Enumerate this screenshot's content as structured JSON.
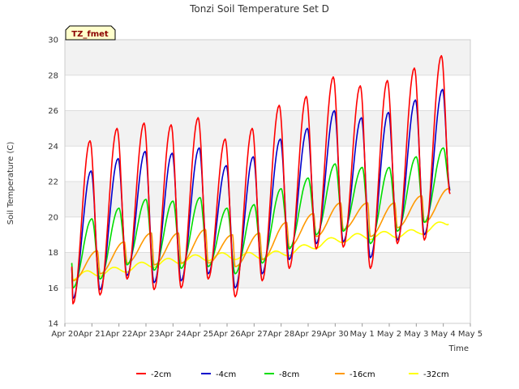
{
  "chart_data": {
    "type": "line",
    "title": "Tonzi Soil Temperature Set D",
    "xlabel": "Time",
    "ylabel": "Soil Temperature (C)",
    "ylim": [
      14,
      30
    ],
    "yticks": [
      14,
      16,
      18,
      20,
      22,
      24,
      26,
      28,
      30
    ],
    "xlim": [
      0,
      15
    ],
    "xtick_labels": [
      "Apr 20",
      "Apr 21",
      "Apr 22",
      "Apr 23",
      "Apr 24",
      "Apr 25",
      "Apr 26",
      "Apr 27",
      "Apr 28",
      "Apr 29",
      "Apr 30",
      "May 1",
      "May 2",
      "May 3",
      "May 4",
      "May 5"
    ],
    "site_label": "TZ_fmet",
    "legend_position": "bottom",
    "grid": true,
    "day_index": [
      0,
      1,
      2,
      3,
      4,
      5,
      6,
      7,
      8,
      9,
      10,
      11,
      12,
      13,
      14
    ],
    "series": [
      {
        "name": "-2cm",
        "color": "#ff0000",
        "peak_x": [
          0.93,
          1.93,
          2.93,
          3.93,
          4.93,
          5.93,
          6.93,
          7.93,
          8.93,
          9.93,
          10.93,
          11.93,
          12.93,
          13.93
        ],
        "peaks": [
          24.3,
          25.0,
          25.3,
          25.2,
          25.6,
          24.4,
          25.0,
          26.3,
          26.8,
          27.9,
          27.4,
          27.7,
          28.4,
          29.1
        ],
        "mins": [
          15.1,
          15.6,
          16.5,
          15.9,
          16.0,
          16.5,
          15.5,
          16.4,
          17.1,
          18.2,
          18.3,
          17.1,
          18.5,
          18.7
        ],
        "start": 17.2,
        "end": 21.3
      },
      {
        "name": "-4cm",
        "color": "#0000cc",
        "peak_x": [
          0.97,
          1.97,
          2.97,
          3.97,
          4.97,
          5.97,
          6.97,
          7.97,
          8.97,
          9.97,
          10.97,
          11.97,
          12.97,
          13.97
        ],
        "peaks": [
          22.6,
          23.3,
          23.7,
          23.6,
          23.9,
          22.9,
          23.4,
          24.4,
          25.0,
          26.0,
          25.6,
          25.9,
          26.6,
          27.2
        ],
        "mins": [
          15.4,
          15.9,
          16.7,
          16.3,
          16.4,
          16.8,
          16.0,
          16.8,
          17.6,
          18.5,
          18.6,
          17.7,
          18.7,
          19.0
        ],
        "start": 17.1,
        "end": 21.5
      },
      {
        "name": "-8cm",
        "color": "#00dd00",
        "peak_x": [
          1.0,
          2.0,
          3.0,
          4.0,
          5.0,
          6.0,
          7.0,
          8.0,
          9.0,
          10.0,
          11.0,
          12.0,
          13.0,
          14.0
        ],
        "peaks": [
          19.9,
          20.5,
          21.0,
          20.9,
          21.1,
          20.5,
          20.7,
          21.6,
          22.2,
          23.0,
          22.8,
          22.8,
          23.4,
          23.9
        ],
        "mins": [
          16.0,
          16.5,
          17.3,
          17.0,
          17.1,
          17.2,
          16.8,
          17.4,
          18.2,
          19.0,
          19.2,
          18.5,
          19.2,
          19.7
        ],
        "start": 17.4,
        "end": 21.6
      },
      {
        "name": "-16cm",
        "color": "#ff9900",
        "peak_x": [
          1.2,
          2.2,
          3.2,
          4.2,
          5.2,
          6.2,
          7.2,
          8.2,
          9.2,
          10.2,
          11.2,
          12.2,
          13.2,
          14.2
        ],
        "peaks": [
          18.1,
          18.6,
          19.1,
          19.1,
          19.3,
          19.0,
          19.1,
          19.7,
          20.2,
          20.8,
          20.8,
          20.8,
          21.2,
          21.6
        ],
        "mins": [
          16.4,
          16.8,
          17.4,
          17.3,
          17.4,
          17.4,
          17.2,
          17.6,
          18.3,
          18.9,
          19.3,
          18.9,
          19.4,
          19.7
        ],
        "start": 17.4,
        "end": 21.6
      },
      {
        "name": "-32cm",
        "color": "#ffff00",
        "start_val": 16.6,
        "min_val": 16.4,
        "end_val": 19.6,
        "daily_means": [
          16.6,
          16.8,
          17.0,
          17.3,
          17.5,
          17.7,
          17.8,
          17.8,
          17.9,
          18.3,
          18.7,
          18.9,
          19.0,
          19.1,
          19.6
        ]
      }
    ]
  }
}
